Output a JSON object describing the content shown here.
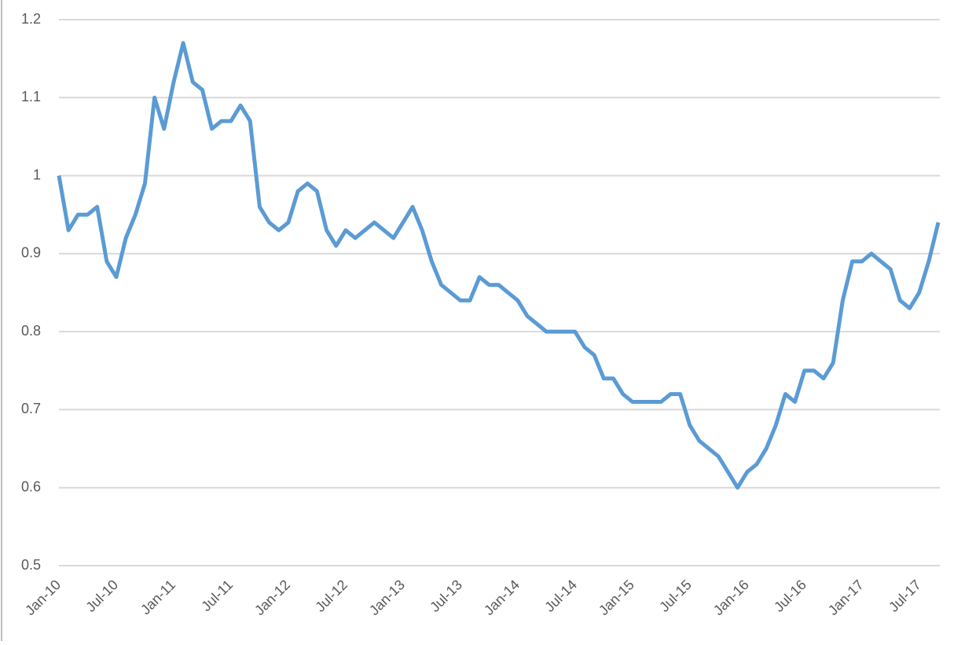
{
  "chart_data": {
    "type": "line",
    "x": [
      "2010-01",
      "2010-02",
      "2010-03",
      "2010-04",
      "2010-05",
      "2010-06",
      "2010-07",
      "2010-08",
      "2010-09",
      "2010-10",
      "2010-11",
      "2010-12",
      "2011-01",
      "2011-02",
      "2011-03",
      "2011-04",
      "2011-05",
      "2011-06",
      "2011-07",
      "2011-08",
      "2011-09",
      "2011-10",
      "2011-11",
      "2011-12",
      "2012-01",
      "2012-02",
      "2012-03",
      "2012-04",
      "2012-05",
      "2012-06",
      "2012-07",
      "2012-08",
      "2012-09",
      "2012-10",
      "2012-11",
      "2012-12",
      "2013-01",
      "2013-02",
      "2013-03",
      "2013-04",
      "2013-05",
      "2013-06",
      "2013-07",
      "2013-08",
      "2013-09",
      "2013-10",
      "2013-11",
      "2013-12",
      "2014-01",
      "2014-02",
      "2014-03",
      "2014-04",
      "2014-05",
      "2014-06",
      "2014-07",
      "2014-08",
      "2014-09",
      "2014-10",
      "2014-11",
      "2014-12",
      "2015-01",
      "2015-02",
      "2015-03",
      "2015-04",
      "2015-05",
      "2015-06",
      "2015-07",
      "2015-08",
      "2015-09",
      "2015-10",
      "2015-11",
      "2015-12",
      "2016-01",
      "2016-02",
      "2016-03",
      "2016-04",
      "2016-05",
      "2016-06",
      "2016-07",
      "2016-08",
      "2016-09",
      "2016-10",
      "2016-11",
      "2016-12",
      "2017-01",
      "2017-02",
      "2017-03",
      "2017-04",
      "2017-05",
      "2017-06",
      "2017-07",
      "2017-08",
      "2017-09"
    ],
    "series": [
      {
        "color": "#5b9bd5",
        "values": [
          1.0,
          0.93,
          0.95,
          0.95,
          0.96,
          0.89,
          0.87,
          0.92,
          0.95,
          0.99,
          1.1,
          1.06,
          1.12,
          1.17,
          1.12,
          1.11,
          1.06,
          1.07,
          1.07,
          1.09,
          1.07,
          0.96,
          0.94,
          0.93,
          0.94,
          0.98,
          0.99,
          0.98,
          0.93,
          0.91,
          0.93,
          0.92,
          0.93,
          0.94,
          0.93,
          0.92,
          0.94,
          0.96,
          0.93,
          0.89,
          0.86,
          0.85,
          0.84,
          0.84,
          0.87,
          0.86,
          0.86,
          0.85,
          0.84,
          0.82,
          0.81,
          0.8,
          0.8,
          0.8,
          0.8,
          0.78,
          0.77,
          0.74,
          0.74,
          0.72,
          0.71,
          0.71,
          0.71,
          0.71,
          0.72,
          0.72,
          0.68,
          0.66,
          0.65,
          0.64,
          0.62,
          0.6,
          0.62,
          0.63,
          0.65,
          0.68,
          0.72,
          0.71,
          0.75,
          0.75,
          0.74,
          0.76,
          0.84,
          0.89,
          0.89,
          0.9,
          0.89,
          0.88,
          0.84,
          0.83,
          0.85,
          0.89,
          0.94
        ]
      }
    ],
    "xlim": [
      "2010-01",
      "2017-09"
    ],
    "xticks": [
      {
        "value": "2010-01",
        "label": "Jan-10"
      },
      {
        "value": "2010-07",
        "label": "Jul-10"
      },
      {
        "value": "2011-01",
        "label": "Jan-11"
      },
      {
        "value": "2011-07",
        "label": "Jul-11"
      },
      {
        "value": "2012-01",
        "label": "Jan-12"
      },
      {
        "value": "2012-07",
        "label": "Jul-12"
      },
      {
        "value": "2013-01",
        "label": "Jan-13"
      },
      {
        "value": "2013-07",
        "label": "Jul-13"
      },
      {
        "value": "2014-01",
        "label": "Jan-14"
      },
      {
        "value": "2014-07",
        "label": "Jul-14"
      },
      {
        "value": "2015-01",
        "label": "Jan-15"
      },
      {
        "value": "2015-07",
        "label": "Jul-15"
      },
      {
        "value": "2016-01",
        "label": "Jan-16"
      },
      {
        "value": "2016-07",
        "label": "Jul-16"
      },
      {
        "value": "2017-01",
        "label": "Jan-17"
      },
      {
        "value": "2017-07",
        "label": "Jul-17"
      }
    ],
    "ylim": [
      0.5,
      1.2
    ],
    "yticks": [
      0.5,
      0.6,
      0.7,
      0.8,
      0.9,
      1,
      1.1,
      1.2
    ],
    "grid": true
  }
}
